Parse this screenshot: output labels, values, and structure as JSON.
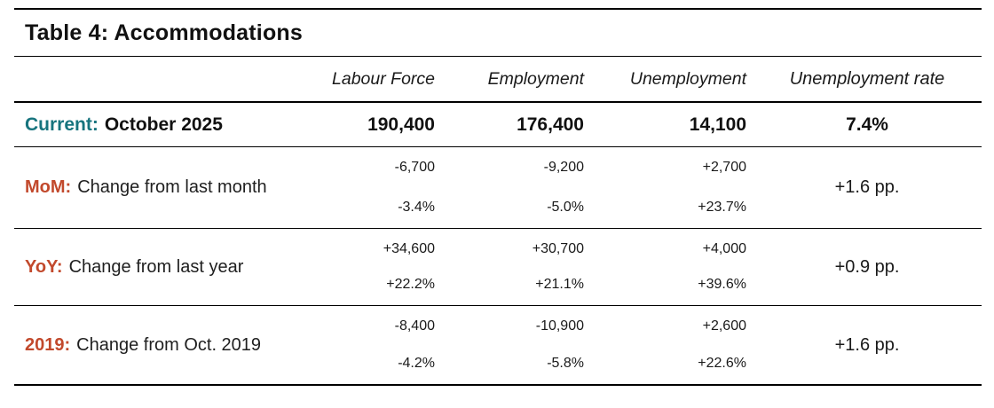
{
  "title": "Table 4: Accommodations",
  "colors": {
    "accent_teal": "#17747E",
    "accent_red": "#C2492C"
  },
  "columns": [
    "Labour Force",
    "Employment",
    "Unemployment",
    "Unemployment rate"
  ],
  "current": {
    "prefix": "Current:",
    "label": "October 2025",
    "labour_force": "190,400",
    "employment": "176,400",
    "unemployment": "14,100",
    "unemployment_rate": "7.4%"
  },
  "rows": [
    {
      "prefix": "MoM:",
      "label": "Change from last month",
      "labour_force": {
        "abs": "-6,700",
        "pct": "-3.4%"
      },
      "employment": {
        "abs": "-9,200",
        "pct": "-5.0%"
      },
      "unemployment": {
        "abs": "+2,700",
        "pct": "+23.7%"
      },
      "rate_change": "+1.6 pp."
    },
    {
      "prefix": "YoY:",
      "label": "Change from last year",
      "labour_force": {
        "abs": "+34,600",
        "pct": "+22.2%"
      },
      "employment": {
        "abs": "+30,700",
        "pct": "+21.1%"
      },
      "unemployment": {
        "abs": "+4,000",
        "pct": "+39.6%"
      },
      "rate_change": "+0.9 pp."
    },
    {
      "prefix": "2019:",
      "label": "Change from Oct. 2019",
      "labour_force": {
        "abs": "-8,400",
        "pct": "-4.2%"
      },
      "employment": {
        "abs": "-10,900",
        "pct": "-5.8%"
      },
      "unemployment": {
        "abs": "+2,600",
        "pct": "+22.6%"
      },
      "rate_change": "+1.6 pp."
    }
  ],
  "chart_data": {
    "type": "table",
    "title": "Table 4: Accommodations",
    "columns": [
      "Labour Force",
      "Employment",
      "Unemployment",
      "Unemployment rate"
    ],
    "rows": [
      {
        "label": "Current: October 2025",
        "labour_force": 190400,
        "employment": 176400,
        "unemployment": 14100,
        "unemployment_rate": "7.4%"
      },
      {
        "label": "MoM: Change from last month",
        "labour_force": -6700,
        "labour_force_pct": "-3.4%",
        "employment": -9200,
        "employment_pct": "-5.0%",
        "unemployment": 2700,
        "unemployment_pct": "+23.7%",
        "unemployment_rate_change": "+1.6 pp."
      },
      {
        "label": "YoY: Change from last year",
        "labour_force": 34600,
        "labour_force_pct": "+22.2%",
        "employment": 30700,
        "employment_pct": "+21.1%",
        "unemployment": 4000,
        "unemployment_pct": "+39.6%",
        "unemployment_rate_change": "+0.9 pp."
      },
      {
        "label": "2019: Change from Oct. 2019",
        "labour_force": -8400,
        "labour_force_pct": "-4.2%",
        "employment": -10900,
        "employment_pct": "-5.8%",
        "unemployment": 2600,
        "unemployment_pct": "+22.6%",
        "unemployment_rate_change": "+1.6 pp."
      }
    ]
  }
}
